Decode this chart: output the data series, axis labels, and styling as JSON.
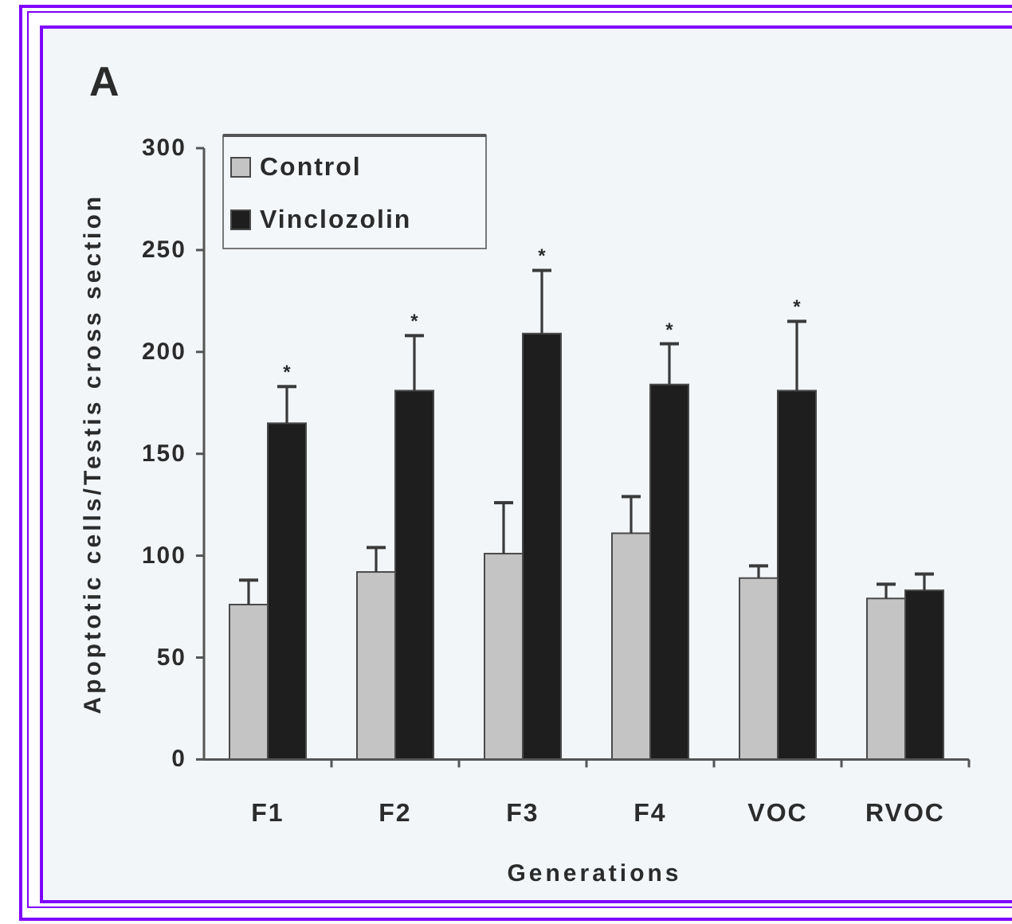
{
  "chart_data": {
    "type": "bar",
    "title": "A",
    "xlabel": "Generations",
    "ylabel": "Apoptotic cells/Testis cross section",
    "categories": [
      "F1",
      "F2",
      "F3",
      "F4",
      "VOC",
      "RVOC"
    ],
    "series": [
      {
        "name": "Control",
        "color": "#c4c4c4",
        "values": [
          76,
          92,
          101,
          111,
          89,
          79
        ],
        "errors": [
          [
            76,
            88
          ],
          [
            92,
            104
          ],
          [
            101,
            126
          ],
          [
            111,
            129
          ],
          [
            89,
            95
          ],
          [
            79,
            86
          ]
        ]
      },
      {
        "name": "Vinclozolin",
        "color": "#1e1e1e",
        "values": [
          165,
          181,
          209,
          184,
          181,
          83
        ],
        "errors": [
          [
            165,
            183
          ],
          [
            181,
            208
          ],
          [
            209,
            240
          ],
          [
            184,
            204
          ],
          [
            181,
            215
          ],
          [
            83,
            91
          ]
        ]
      }
    ],
    "ylim": [
      0,
      300
    ],
    "yticks": [
      0,
      50,
      100,
      150,
      200,
      250,
      300
    ],
    "legend": "top left",
    "annotations": [
      "*",
      "*",
      "*",
      "*",
      "*"
    ]
  }
}
